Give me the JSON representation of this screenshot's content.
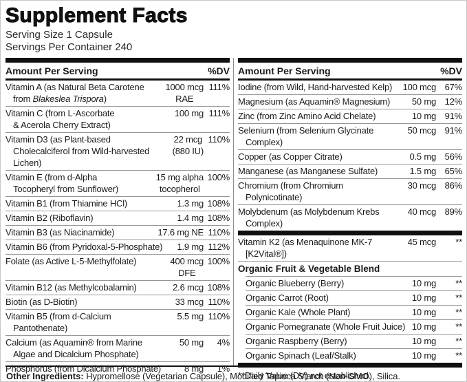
{
  "panel": {
    "title": "Supplement Facts",
    "serving_size": "Serving Size 1 Capsule",
    "servings_per_container": "Servings Per Container 240",
    "header": {
      "amount_label": "Amount Per Serving",
      "dv_label": "%DV"
    },
    "left_column": {
      "rows": [
        {
          "name_pre": "Vitamin A (as Natural Beta Carotene\nfrom ",
          "name_it": "Blakeslea Trispora",
          "name_post": ")",
          "amount": "1000 mcg\nRAE",
          "dv": "111%"
        },
        {
          "name": "Vitamin C (from L-Ascorbate\n& Acerola Cherry Extract)",
          "amount": "100 mg",
          "dv": "111%"
        },
        {
          "name": "Vitamin D3 (as Plant-based\nCholecalciferol from Wild-harvested\nLichen)",
          "amount": "22 mcg\n(880 IU)",
          "dv": "110%"
        },
        {
          "name": "Vitamin E (from d-Alpha\nTocopheryl from Sunflower)",
          "amount": "15 mg alpha\ntocopherol",
          "dv": "100%"
        },
        {
          "name": "Vitamin B1 (from Thiamine HCl)",
          "amount": "1.3 mg",
          "dv": "108%"
        },
        {
          "name": "Vitamin B2 (Riboflavin)",
          "amount": "1.4 mg",
          "dv": "108%"
        },
        {
          "name": "Vitamin B3 (as Niacinamide)",
          "amount": "17.6 mg NE",
          "dv": "110%"
        },
        {
          "name": "Vitamin B6 (from Pyridoxal-5-Phosphate)",
          "amount": "1.9 mg",
          "dv": "112%"
        },
        {
          "name": "Folate (as Active L-5-Methylfolate)",
          "amount": "400 mcg\nDFE",
          "dv": "100%"
        },
        {
          "name": "Vitamin B12 (as Methylcobalamin)",
          "amount": "2.6 mcg",
          "dv": "108%"
        },
        {
          "name": "Biotin (as D-Biotin)",
          "amount": "33 mcg",
          "dv": "110%"
        },
        {
          "name": "Vitamin B5 (from d-Calcium\nPantothenate)",
          "amount": "5.5 mg",
          "dv": "110%"
        },
        {
          "name": "Calcium (as Aquamin® from Marine\nAlgae and Dicalcium Phosphate)",
          "amount": "50 mg",
          "dv": "4%"
        },
        {
          "name": "Phosphorus (from Dicalcium Phosphate)",
          "amount": "8 mg",
          "dv": "1%"
        }
      ]
    },
    "right_column": {
      "rows_minerals": [
        {
          "name": "Iodine (from Wild, Hand-harvested Kelp)",
          "amount": "100 mcg",
          "dv": "67%"
        },
        {
          "name": "Magnesium (as Aquamin® Magnesium)",
          "amount": "50 mg",
          "dv": "12%"
        },
        {
          "name": "Zinc (from Zinc Amino Acid Chelate)",
          "amount": "10 mg",
          "dv": "91%"
        },
        {
          "name": "Selenium (from Selenium Glycinate\nComplex)",
          "amount": "50 mcg",
          "dv": "91%"
        },
        {
          "name": "Copper (as Copper Citrate)",
          "amount": "0.5 mg",
          "dv": "56%"
        },
        {
          "name": "Manganese (as Manganese Sulfate)",
          "amount": "1.5 mg",
          "dv": "65%"
        },
        {
          "name": "Chromium (from Chromium\nPolynicotinate)",
          "amount": "30 mcg",
          "dv": "86%"
        },
        {
          "name": "Molybdenum (as Molybdenum Krebs\nComplex)",
          "amount": "40 mcg",
          "dv": "89%"
        }
      ],
      "row_k2": {
        "name": "Vitamin K2 (as Menaquinone MK-7\n[K2Vital®])",
        "amount": "45 mcg",
        "dv": "**"
      },
      "blend_heading": "Organic Fruit & Vegetable Blend",
      "rows_blend": [
        {
          "name": "Organic Blueberry (Berry)",
          "amount": "10 mg",
          "dv": "**"
        },
        {
          "name": "Organic Carrot (Root)",
          "amount": "10 mg",
          "dv": "**"
        },
        {
          "name": "Organic Kale (Whole Plant)",
          "amount": "10 mg",
          "dv": "**"
        },
        {
          "name": "Organic Pomegranate (Whole Fruit Juice)",
          "amount": "10 mg",
          "dv": "**"
        },
        {
          "name": "Organic Raspberry (Berry)",
          "amount": "10 mg",
          "dv": "**"
        },
        {
          "name": "Organic Spinach (Leaf/Stalk)",
          "amount": "10 mg",
          "dv": "**"
        }
      ],
      "footnote": "**Daily Value (DV) not established."
    },
    "footer": {
      "label": "Other Ingredients:",
      "text": " Hypromellose (Vegetarian Capsule), Modified Tapioca Starch (Non-GMO), Silica."
    }
  }
}
